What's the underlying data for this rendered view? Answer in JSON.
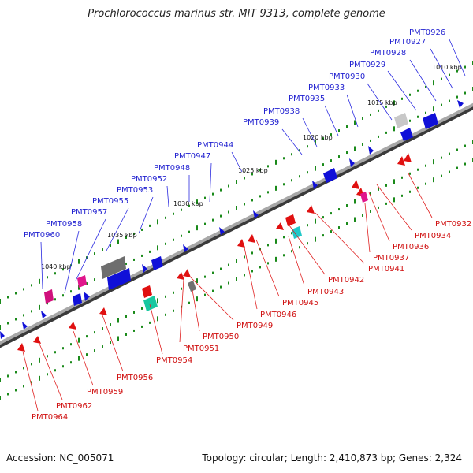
{
  "title": "Prochlorococcus marinus str. MIT 9313, complete genome",
  "footer": {
    "accession": "Accession: NC_005071",
    "summary": "Topology: circular; Length: 2,410,873 bp; Genes: 2,324"
  },
  "colors": {
    "backbone": "#808080",
    "forward_label": "#1f1fd0",
    "reverse_label": "#d01010",
    "tick": "#1a8a1a"
  },
  "scale_labels": [
    "1010 kbp",
    "1015 kbp",
    "1020 kbp",
    "1025 kbp",
    "1030 kbp",
    "1035 kbp",
    "1040 kbp"
  ],
  "forward_genes": [
    "PMT0926",
    "PMT0927",
    "PMT0928",
    "PMT0929",
    "PMT0930",
    "PMT0933",
    "PMT0935",
    "PMT0938",
    "PMT0939",
    "PMT0944",
    "PMT0947",
    "PMT0948",
    "PMT0952",
    "PMT0953",
    "PMT0955",
    "PMT0957",
    "PMT0958",
    "PMT0960"
  ],
  "reverse_genes": [
    "PMT0932",
    "PMT0934",
    "PMT0936",
    "PMT0937",
    "PMT0941",
    "PMT0942",
    "PMT0943",
    "PMT0945",
    "PMT0946",
    "PMT0949",
    "PMT0950",
    "PMT0951",
    "PMT0954",
    "PMT0956",
    "PMT0959",
    "PMT0962",
    "PMT0964"
  ]
}
